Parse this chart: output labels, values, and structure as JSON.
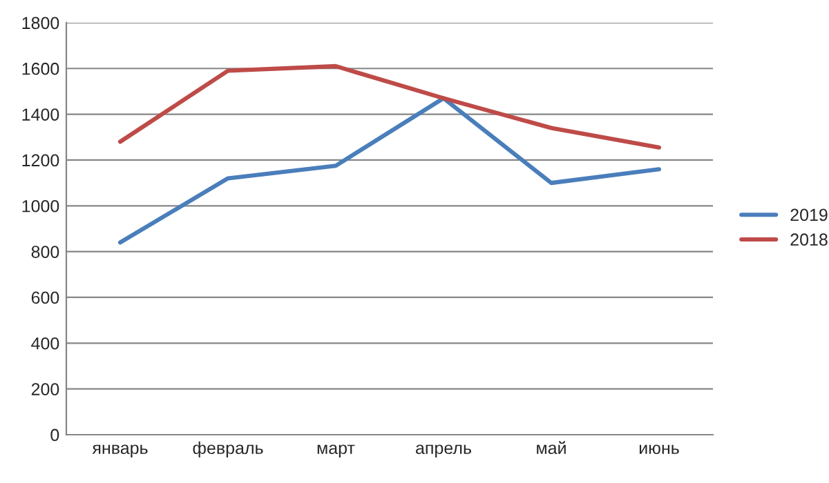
{
  "chart_data": {
    "type": "line",
    "categories": [
      "январь",
      "февраль",
      "март",
      "апрель",
      "май",
      "июнь"
    ],
    "series": [
      {
        "name": "2019",
        "color": "#4a7ebb",
        "values": [
          840,
          1120,
          1175,
          1470,
          1100,
          1160
        ]
      },
      {
        "name": "2018",
        "color": "#be4b48",
        "values": [
          1280,
          1590,
          1610,
          1470,
          1340,
          1255
        ]
      }
    ],
    "ylim": [
      0,
      1800
    ],
    "yticks": [
      0,
      200,
      400,
      600,
      800,
      1000,
      1200,
      1400,
      1600,
      1800
    ],
    "grid": "y",
    "legend": "right",
    "marker": "none",
    "line_style": "solid"
  }
}
